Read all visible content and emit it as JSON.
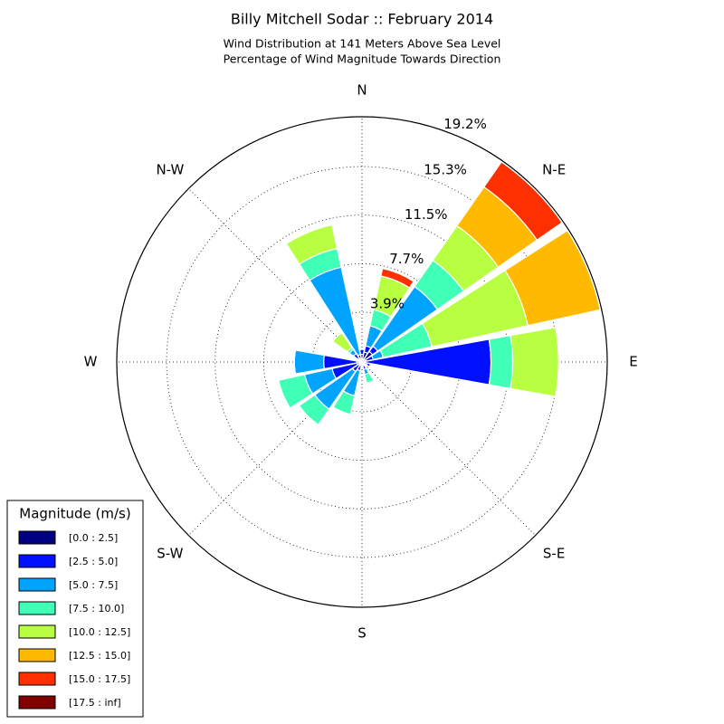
{
  "chart_data": {
    "type": "windrose",
    "title": "Billy Mitchell Sodar :: February 2014",
    "subtitle": [
      "Wind Distribution at 141 Meters Above Sea Level",
      "Percentage of Wind Magnitude Towards Direction"
    ],
    "categories": [
      "N",
      null,
      "N-E",
      null,
      "E",
      null,
      "S-E",
      null,
      "S",
      null,
      "S-W",
      null,
      "W",
      null,
      "N-W",
      null
    ],
    "rlim": [
      0,
      19.2
    ],
    "rticks": [
      {
        "value": 3.9,
        "label": "3.9%"
      },
      {
        "value": 7.7,
        "label": "7.7%"
      },
      {
        "value": 11.5,
        "label": "11.5%"
      },
      {
        "value": 15.3,
        "label": "15.3%"
      },
      {
        "value": 19.2,
        "label": "19.2%"
      }
    ],
    "grid": true,
    "legend_title": "Magnitude (m/s)",
    "legend_position": "lower left",
    "series": [
      {
        "name": "[0.0 : 2.5]",
        "color": "#000080",
        "values": [
          0.6,
          0.8,
          1.0,
          0.3,
          0.3,
          0.4,
          0.3,
          0.3,
          0.3,
          0.3,
          0.3,
          0.4,
          0.4,
          0.2,
          0.4,
          0.3
        ]
      },
      {
        "name": "[2.5 : 5.0]",
        "color": "#0010ff",
        "values": [
          0.4,
          0.5,
          0.5,
          0.6,
          9.8,
          0.3,
          0,
          0.3,
          0,
          0.4,
          0.6,
          2.0,
          2.6,
          0,
          0.4,
          0.3
        ]
      },
      {
        "name": "[5.0 : 7.5]",
        "color": "#00a4ff",
        "values": [
          0,
          1.6,
          5.7,
          0.8,
          0,
          0,
          0,
          0.4,
          0,
          2.0,
          3.6,
          2.2,
          2.3,
          0,
          0.4,
          7.0
        ]
      },
      {
        "name": "[7.5 : 10.0]",
        "color": "#40ffb7",
        "values": [
          0,
          1.3,
          2.5,
          3.9,
          1.7,
          0,
          0,
          0.7,
          0,
          1.5,
          1.5,
          2.1,
          0,
          0,
          0.2,
          1.5
        ]
      },
      {
        "name": "[10.0 : 12.5]",
        "color": "#b7ff40",
        "values": [
          0,
          2.7,
          3.3,
          7.7,
          3.6,
          0,
          0,
          0,
          0,
          0,
          0,
          0,
          0,
          0,
          1.4,
          1.9
        ]
      },
      {
        "name": "[12.5 : 15.0]",
        "color": "#ffb900",
        "values": [
          0,
          0,
          3.7,
          5.8,
          0,
          0,
          0,
          0,
          0,
          0,
          0,
          0,
          0,
          0,
          0,
          0
        ]
      },
      {
        "name": "[15.0 : 17.5]",
        "color": "#ff3000",
        "values": [
          0,
          0.6,
          2.4,
          0,
          0,
          0,
          0,
          0,
          0,
          0,
          0,
          0,
          0,
          0,
          0,
          0
        ]
      },
      {
        "name": "[17.5 : inf]",
        "color": "#800000",
        "values": [
          0,
          0,
          0,
          0,
          0,
          0,
          0,
          0,
          0,
          0,
          0,
          0,
          0,
          0,
          0,
          0
        ]
      }
    ]
  }
}
